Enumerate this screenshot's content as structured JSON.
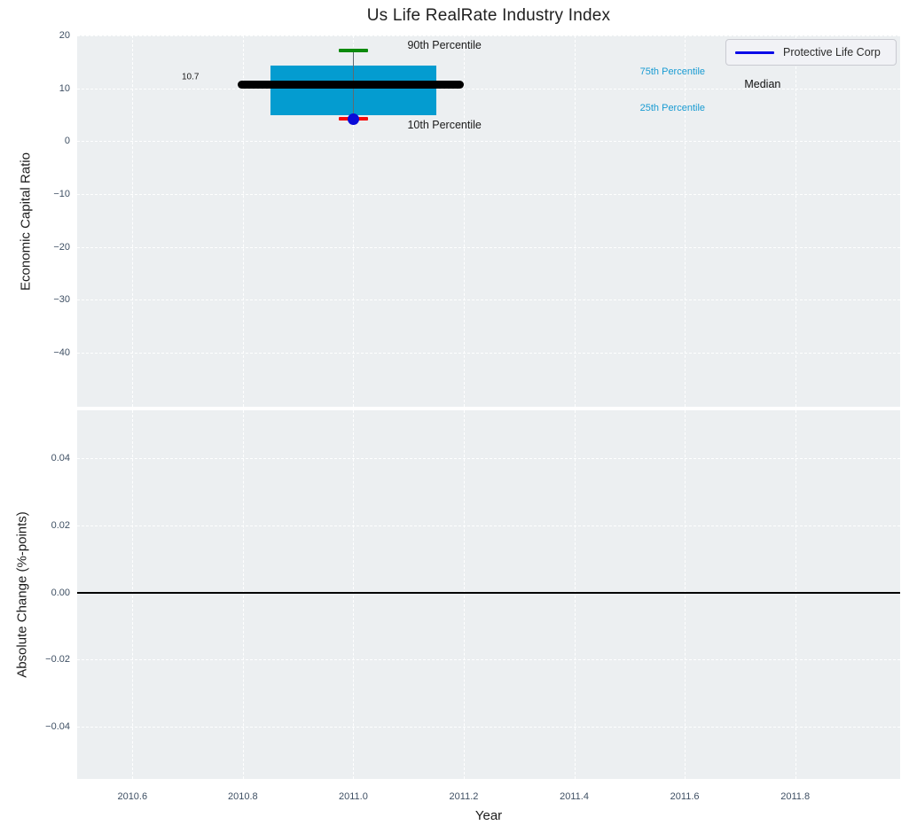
{
  "figure": {
    "title": "Us Life RealRate Industry Index",
    "xlabel": "Year"
  },
  "legend": {
    "label": "Protective Life Corp",
    "line_color": "#0909e8"
  },
  "colors": {
    "panel_background": "#eceff1",
    "gridline": "#ffffff",
    "tick_label": "#3e4f63",
    "box_fill": "#049cd0",
    "median_line": "#000000",
    "whisker": "#5f6a72",
    "p90_cap": "#0c8a0c",
    "p10_cap": "#f80808",
    "company_dot": "#0a0ad8",
    "zero_line": "#000000"
  },
  "chart_data": [
    {
      "type": "boxplot",
      "title": "Us Life RealRate Industry Index",
      "xlabel": "Year",
      "ylabel": "Economic Capital Ratio",
      "xlim": [
        2010.5,
        2011.99
      ],
      "ylim": [
        -50.2,
        20
      ],
      "grid": true,
      "legend_position": "upper right",
      "xticks": [
        {
          "value": 2010.6,
          "label": "2010.6"
        },
        {
          "value": 2010.8,
          "label": "2010.8"
        },
        {
          "value": 2011.0,
          "label": "2011.0"
        },
        {
          "value": 2011.2,
          "label": "2011.2"
        },
        {
          "value": 2011.4,
          "label": "2011.4"
        },
        {
          "value": 2011.6,
          "label": "2011.6"
        },
        {
          "value": 2011.8,
          "label": "2011.8"
        }
      ],
      "yticks": [
        {
          "value": 20,
          "label": "20"
        },
        {
          "value": 10,
          "label": "10"
        },
        {
          "value": 0,
          "label": "0"
        },
        {
          "value": -10,
          "label": "−10"
        },
        {
          "value": -20,
          "label": "−20"
        },
        {
          "value": -30,
          "label": "−30"
        },
        {
          "value": -40,
          "label": "−40"
        }
      ],
      "series": [
        {
          "name": "Protective Life Corp",
          "x": 2011.0,
          "p90": 17.2,
          "p75": 14.3,
          "median": 10.7,
          "p25": 5.0,
          "p10": 4.3,
          "marker_value": 4.1,
          "median_label": "10.7"
        }
      ],
      "geometry": {
        "box_x": [
          2010.85,
          2011.15
        ],
        "median_x": [
          2010.79,
          2011.2
        ],
        "cap_x": [
          2010.974,
          2011.026
        ]
      },
      "annotations": [
        {
          "text": "10.7",
          "x": 2010.705,
          "y": 12.1,
          "color": "#1a1a1a",
          "size": 10,
          "align": "center"
        },
        {
          "text": "90th Percentile",
          "x": 2011.098,
          "y": 18.2,
          "color": "#1a1a1a",
          "size": 12.5,
          "align": "left"
        },
        {
          "text": "10th Percentile",
          "x": 2011.098,
          "y": 3.0,
          "color": "#1a1a1a",
          "size": 12.5,
          "align": "left"
        },
        {
          "text": "75th Percentile",
          "x": 2011.519,
          "y": 13.1,
          "color": "#199bd2",
          "size": 11,
          "align": "left"
        },
        {
          "text": "25th Percentile",
          "x": 2011.519,
          "y": 6.2,
          "color": "#199bd2",
          "size": 11,
          "align": "left"
        },
        {
          "text": "Median",
          "x": 2011.708,
          "y": 10.8,
          "color": "#111111",
          "size": 12.5,
          "align": "left"
        }
      ]
    },
    {
      "type": "line",
      "xlabel": "Year",
      "ylabel": "Absolute Change (%-points)",
      "xlim": [
        2010.5,
        2011.99
      ],
      "ylim": [
        -0.0555,
        0.0542
      ],
      "grid": true,
      "zero_line": 0,
      "series": [],
      "yticks": [
        {
          "value": 0.04,
          "label": "0.04"
        },
        {
          "value": 0.02,
          "label": "0.02"
        },
        {
          "value": 0.0,
          "label": "0.00"
        },
        {
          "value": -0.02,
          "label": "−0.02"
        },
        {
          "value": -0.04,
          "label": "−0.04"
        }
      ]
    }
  ]
}
